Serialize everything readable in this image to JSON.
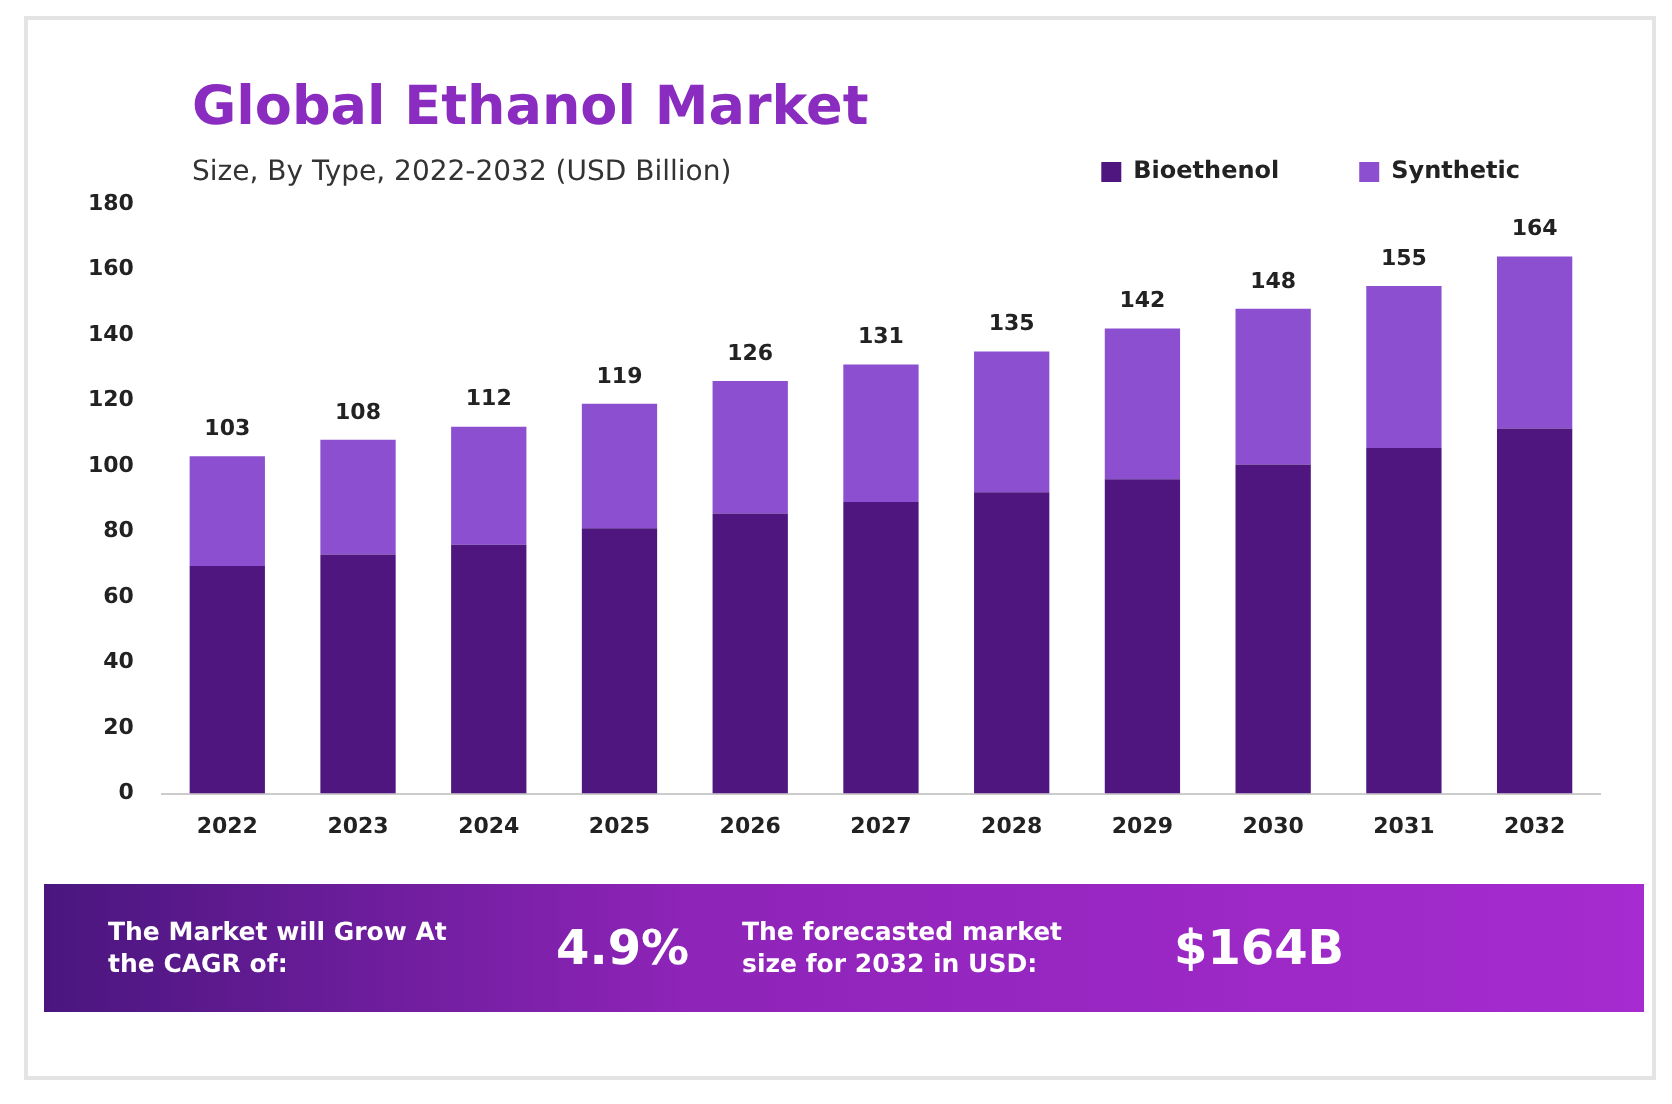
{
  "chart_data": {
    "type": "bar",
    "title": "Global Ethanol Market",
    "subtitle": "Size, By Type, 2022-2032 (USD Billion)",
    "categories": [
      "2022",
      "2023",
      "2024",
      "2025",
      "2026",
      "2027",
      "2028",
      "2029",
      "2030",
      "2031",
      "2032"
    ],
    "series": [
      {
        "name": "Bioethenol",
        "color": "#4f1680",
        "values": [
          69.5,
          73,
          76,
          81,
          85.5,
          89,
          92,
          96,
          100.5,
          105.5,
          111.5
        ]
      },
      {
        "name": "Synthetic",
        "color": "#8c4fcf",
        "values": [
          33.5,
          35,
          36,
          38,
          40.5,
          42,
          43,
          46,
          47.5,
          49.5,
          52.5
        ]
      }
    ],
    "stacked": true,
    "totals": [
      "103",
      "108",
      "112",
      "119",
      "126",
      "131",
      "135",
      "142",
      "148",
      "155",
      "164"
    ],
    "ylim": [
      0,
      180
    ],
    "yticks": [
      0,
      20,
      40,
      60,
      80,
      100,
      120,
      140,
      160,
      180
    ],
    "grid": false,
    "legend": "top right",
    "annotations": [
      "The Market will Grow At the CAGR of:",
      "4.9%",
      "The forecasted market size for 2032 in USD:",
      "$164B"
    ]
  }
}
